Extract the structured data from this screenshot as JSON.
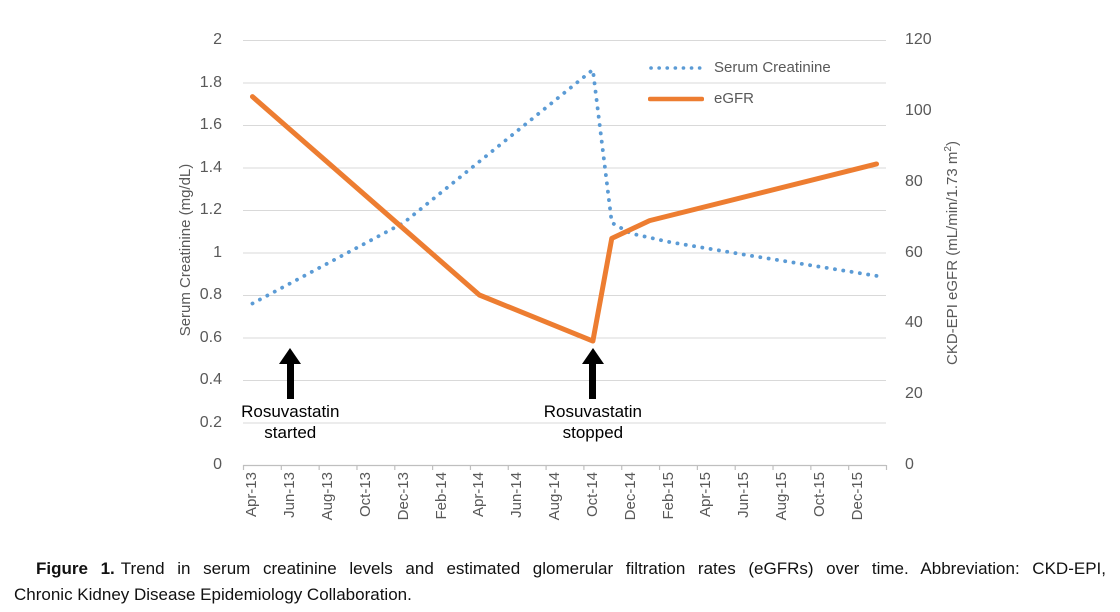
{
  "figure": {
    "caption": {
      "prefix": "Figure 1.",
      "line1": "Trend in serum creatinine levels and estimated glomerular filtration rates (eGFRs) over time. Abbreviation: CKD-EPI,",
      "line2": "Chronic Kidney Disease Epidemiology Collaboration."
    }
  },
  "colors": {
    "creatinine_blue": "#5B9BD5",
    "egfr_orange": "#ED7D31",
    "gridline": "#D9D9D9",
    "axis_line": "#BFBFBF",
    "tick_text": "#595959",
    "annotation_text": "#000000"
  },
  "chart_data": {
    "type": "line",
    "title": "",
    "grid": "horizontal",
    "x_axis": {
      "unit": "month",
      "months_total": 34,
      "start_label": "Apr-13",
      "tick_labels": [
        "Apr-13",
        "Jun-13",
        "Aug-13",
        "Oct-13",
        "Dec-13",
        "Feb-14",
        "Apr-14",
        "Jun-14",
        "Aug-14",
        "Oct-14",
        "Dec-14",
        "Feb-15",
        "Apr-15",
        "Jun-15",
        "Aug-15",
        "Oct-15",
        "Dec-15"
      ]
    },
    "left_axis": {
      "title": "Serum Creatinine (mg/dL)",
      "range": [
        0,
        2
      ],
      "ticks": [
        {
          "v": 2,
          "label": "2"
        },
        {
          "v": 1.8,
          "label": "1.8"
        },
        {
          "v": 1.6,
          "label": "1.6"
        },
        {
          "v": 1.4,
          "label": "1.4"
        },
        {
          "v": 1.2,
          "label": "1.2"
        },
        {
          "v": 1,
          "label": "1"
        },
        {
          "v": 0.8,
          "label": "0.8"
        },
        {
          "v": 0.6,
          "label": "0.6"
        },
        {
          "v": 0.4,
          "label": "0.4"
        },
        {
          "v": 0.2,
          "label": "0.2"
        },
        {
          "v": 0,
          "label": "0"
        }
      ]
    },
    "right_axis": {
      "title_pre": "CKD-EPI eGFR (mL/min/1.73 m",
      "title_sup": "2",
      "title_post": ")",
      "range": [
        0,
        120
      ],
      "ticks": [
        {
          "v": 120,
          "label": "120"
        },
        {
          "v": 100,
          "label": "100"
        },
        {
          "v": 80,
          "label": "80"
        },
        {
          "v": 60,
          "label": "60"
        },
        {
          "v": 40,
          "label": "40"
        },
        {
          "v": 20,
          "label": "20"
        },
        {
          "v": 0,
          "label": "0"
        }
      ]
    },
    "series": [
      {
        "name": "Serum Creatinine",
        "axis": "left",
        "style": "dotted",
        "color": "#5B9BD5",
        "points": [
          {
            "m": 0,
            "x": "Apr-13",
            "v": 0.76
          },
          {
            "m": 8,
            "x": "Dec-13",
            "v": 1.14
          },
          {
            "m": 18,
            "x": "Oct-14",
            "v": 1.86
          },
          {
            "m": 19,
            "x": "Nov-14",
            "v": 1.14
          },
          {
            "m": 20,
            "x": "Dec-14",
            "v": 1.09
          },
          {
            "m": 22,
            "x": "Feb-15",
            "v": 1.05
          },
          {
            "m": 24,
            "x": "Apr-15",
            "v": 1.02
          },
          {
            "m": 26,
            "x": "Jun-15",
            "v": 0.99
          },
          {
            "m": 33,
            "x": "Jan-16",
            "v": 0.89
          }
        ]
      },
      {
        "name": "eGFR",
        "axis": "right",
        "style": "solid",
        "color": "#ED7D31",
        "points": [
          {
            "m": 0,
            "x": "Apr-13",
            "v": 104
          },
          {
            "m": 12,
            "x": "Apr-14",
            "v": 48
          },
          {
            "m": 18,
            "x": "Oct-14",
            "v": 35
          },
          {
            "m": 19,
            "x": "Nov-14",
            "v": 64
          },
          {
            "m": 21,
            "x": "Jan-15",
            "v": 69
          },
          {
            "m": 33,
            "x": "Jan-16",
            "v": 85
          }
        ]
      }
    ],
    "legend": {
      "position": "top-right",
      "entries": [
        "Serum Creatinine",
        "eGFR"
      ]
    },
    "annotations": [
      {
        "x_month": 2,
        "lines": [
          "Rosuvastatin",
          "started"
        ]
      },
      {
        "x_month": 18,
        "lines": [
          "Rosuvastatin",
          "stopped"
        ]
      }
    ]
  }
}
